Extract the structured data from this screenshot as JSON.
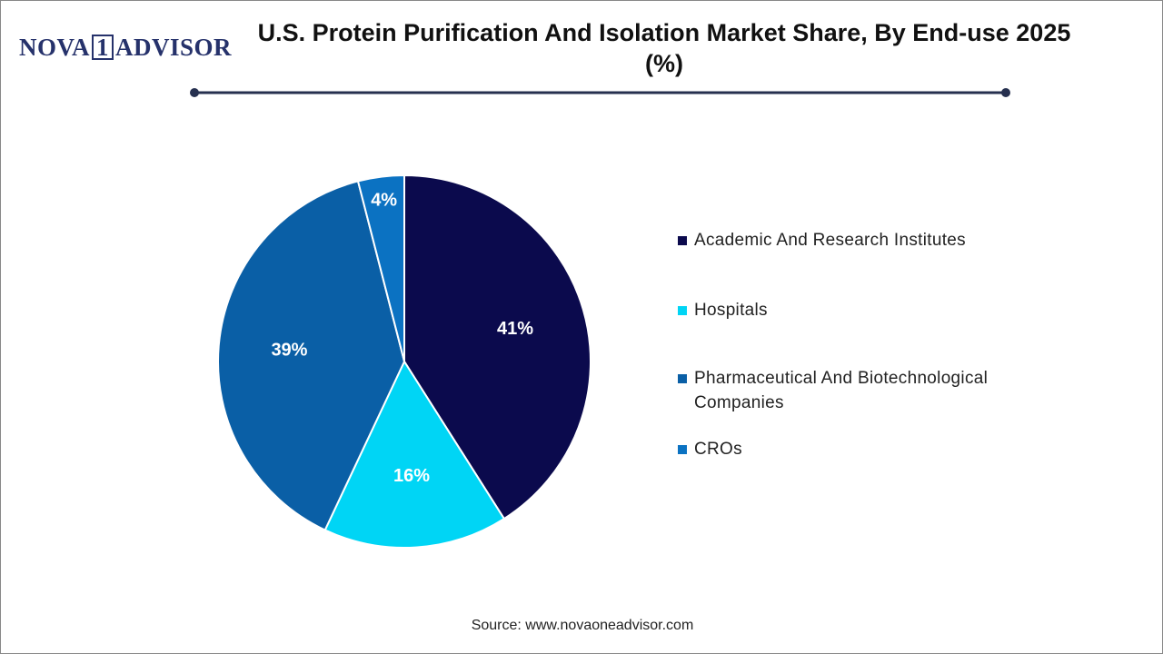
{
  "logo": {
    "left": "NOVA",
    "mark": "1",
    "right": "ADVISOR"
  },
  "chart_data": {
    "type": "pie",
    "title": "U.S. Protein Purification And Isolation Market Share, By End-use 2025 (%)",
    "categories": [
      "Academic And Research Institutes",
      "Hospitals",
      "Pharmaceutical And Biotechnological Companies",
      "CROs"
    ],
    "values": [
      41,
      16,
      39,
      4
    ],
    "value_labels": [
      "41%",
      "16%",
      "39%",
      "4%"
    ],
    "colors": [
      "#0b0a4d",
      "#00d5f5",
      "#0a5fa6",
      "#0b72c2"
    ],
    "legend": "right"
  },
  "source": "Source: www.novaoneadvisor.com"
}
